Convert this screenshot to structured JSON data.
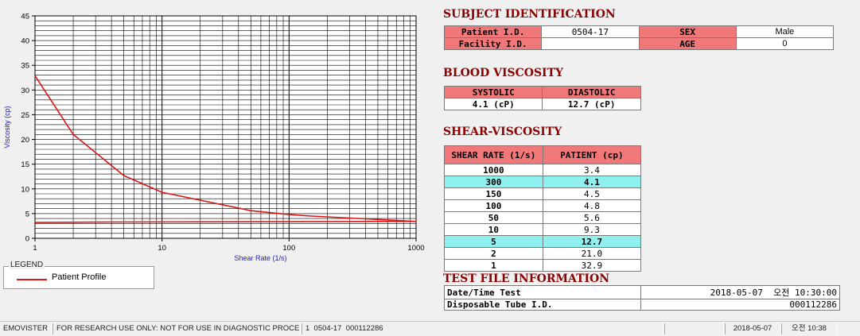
{
  "chart_data": {
    "type": "line",
    "xlabel": "Shear Rate (1/s)",
    "ylabel": "Viscosity (cp)",
    "x_scale": "log",
    "xlim": [
      1,
      1000
    ],
    "ylim": [
      0,
      45
    ],
    "x_ticks": [
      "1",
      "10",
      "100",
      "1000"
    ],
    "y_ticks": [
      "0",
      "5",
      "10",
      "15",
      "20",
      "25",
      "30",
      "35",
      "40",
      "45"
    ],
    "grid": true,
    "series": [
      {
        "name": "Patient Profile",
        "color": "#d81818",
        "x": [
          1,
          2,
          5,
          10,
          50,
          100,
          150,
          300,
          1000
        ],
        "y": [
          32.9,
          21.0,
          12.7,
          9.3,
          5.6,
          4.8,
          4.5,
          4.1,
          3.4
        ]
      },
      {
        "name": "",
        "color": "#d81818",
        "x": [
          1,
          4,
          1000
        ],
        "y": [
          3.2,
          3.3,
          3.4
        ]
      }
    ]
  },
  "legend": {
    "title": "LEGEND",
    "entry": "Patient Profile",
    "color": "#d81818"
  },
  "subject": {
    "title": "SUBJECT IDENTIFICATION",
    "patient_id_label": "Patient I.D.",
    "patient_id": "0504-17",
    "sex_label": "SEX",
    "sex": "Male",
    "facility_label": "Facility I.D.",
    "facility": "",
    "age_label": "AGE",
    "age": "0"
  },
  "blood": {
    "title": "BLOOD VISCOSITY",
    "systolic_label": "SYSTOLIC",
    "diastolic_label": "DIASTOLIC",
    "systolic": "4.1 (cP)",
    "diastolic": "12.7 (cP)"
  },
  "shear": {
    "title": "SHEAR-VISCOSITY",
    "col_rate": "SHEAR RATE (1/s)",
    "col_patient": "PATIENT (cp)",
    "rows": [
      {
        "rate": "1000",
        "val": "3.4",
        "hl": false
      },
      {
        "rate": "300",
        "val": "4.1",
        "hl": true
      },
      {
        "rate": "150",
        "val": "4.5",
        "hl": false
      },
      {
        "rate": "100",
        "val": "4.8",
        "hl": false
      },
      {
        "rate": "50",
        "val": "5.6",
        "hl": false
      },
      {
        "rate": "10",
        "val": "9.3",
        "hl": false
      },
      {
        "rate": "5",
        "val": "12.7",
        "hl": true
      },
      {
        "rate": "2",
        "val": "21.0",
        "hl": false
      },
      {
        "rate": "1",
        "val": "32.9",
        "hl": false
      }
    ],
    "highlight_color": "#8ff0f0",
    "header_color": "#f07878"
  },
  "test_file": {
    "title": "TEST FILE INFORMATION",
    "date_label": "Date/Time Test",
    "date_value": "2018-05-07  오전 10:30:00",
    "tube_label": "Disposable Tube I.D.",
    "tube_value": "000112286"
  },
  "status": {
    "app": "EMOVISTER",
    "notice": "FOR RESEARCH USE ONLY: NOT FOR USE IN DIAGNOSTIC PROCEDURES",
    "record": "1  0504-17  000112286",
    "blank": "",
    "date": "2018-05-07",
    "time": "오전 10:38"
  }
}
